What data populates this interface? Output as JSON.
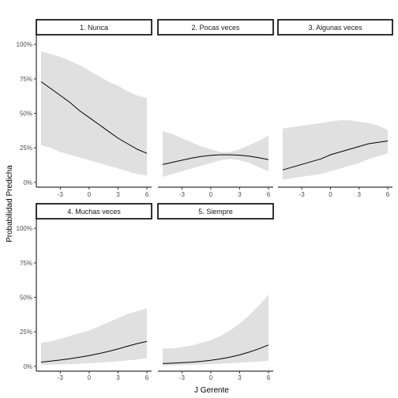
{
  "chart_data": {
    "type": "line",
    "xlabel": "J Gerente",
    "ylabel": "Probabilidad Predicha",
    "xlim": [
      -5,
      6
    ],
    "ylim": [
      0,
      1
    ],
    "x_ticks": [
      -3,
      0,
      3,
      6
    ],
    "y_ticks": [
      0,
      0.25,
      0.5,
      0.75,
      1.0
    ],
    "y_tick_labels": [
      "0%",
      "25%",
      "50%",
      "75%",
      "100%"
    ],
    "band_color": "#e0e0e0",
    "line_color": "#000000",
    "panels": [
      {
        "title": "1. Nunca",
        "x": [
          -5,
          -4,
          -3,
          -2,
          -1,
          0,
          1,
          2,
          3,
          4,
          5,
          6
        ],
        "y": [
          0.73,
          0.68,
          0.63,
          0.58,
          0.52,
          0.47,
          0.42,
          0.37,
          0.32,
          0.28,
          0.24,
          0.21
        ],
        "lower": [
          0.27,
          0.25,
          0.22,
          0.2,
          0.18,
          0.16,
          0.14,
          0.12,
          0.1,
          0.08,
          0.06,
          0.05
        ],
        "upper": [
          0.95,
          0.93,
          0.91,
          0.88,
          0.85,
          0.81,
          0.77,
          0.73,
          0.7,
          0.66,
          0.63,
          0.61
        ]
      },
      {
        "title": "2. Pocas veces",
        "x": [
          -5,
          -4,
          -3,
          -2,
          -1,
          0,
          1,
          2,
          3,
          4,
          5,
          6
        ],
        "y": [
          0.13,
          0.145,
          0.16,
          0.175,
          0.188,
          0.196,
          0.2,
          0.2,
          0.197,
          0.19,
          0.178,
          0.165
        ],
        "lower": [
          0.04,
          0.06,
          0.08,
          0.1,
          0.12,
          0.14,
          0.16,
          0.17,
          0.16,
          0.14,
          0.11,
          0.08
        ],
        "upper": [
          0.37,
          0.35,
          0.32,
          0.29,
          0.26,
          0.24,
          0.22,
          0.22,
          0.24,
          0.27,
          0.3,
          0.34
        ]
      },
      {
        "title": "3. Algunas veces",
        "x": [
          -5,
          -4,
          -3,
          -2,
          -1,
          0,
          1,
          2,
          3,
          4,
          5,
          6
        ],
        "y": [
          0.09,
          0.11,
          0.13,
          0.15,
          0.17,
          0.2,
          0.22,
          0.24,
          0.26,
          0.28,
          0.29,
          0.3
        ],
        "lower": [
          0.02,
          0.03,
          0.04,
          0.05,
          0.06,
          0.08,
          0.1,
          0.12,
          0.14,
          0.17,
          0.19,
          0.21
        ],
        "upper": [
          0.39,
          0.4,
          0.41,
          0.42,
          0.43,
          0.44,
          0.45,
          0.45,
          0.44,
          0.43,
          0.41,
          0.38
        ]
      },
      {
        "title": "4. Muchas veces",
        "x": [
          -5,
          -4,
          -3,
          -2,
          -1,
          0,
          1,
          2,
          3,
          4,
          5,
          6
        ],
        "y": [
          0.03,
          0.038,
          0.046,
          0.055,
          0.066,
          0.078,
          0.092,
          0.108,
          0.126,
          0.146,
          0.165,
          0.18
        ],
        "lower": [
          0.01,
          0.012,
          0.014,
          0.016,
          0.019,
          0.022,
          0.026,
          0.031,
          0.036,
          0.043,
          0.05,
          0.06
        ],
        "upper": [
          0.17,
          0.18,
          0.2,
          0.22,
          0.24,
          0.26,
          0.29,
          0.32,
          0.35,
          0.38,
          0.4,
          0.42
        ]
      },
      {
        "title": "5. Siempre",
        "x": [
          -5,
          -4,
          -3,
          -2,
          -1,
          0,
          1,
          2,
          3,
          4,
          5,
          6
        ],
        "y": [
          0.02,
          0.023,
          0.026,
          0.03,
          0.036,
          0.044,
          0.054,
          0.067,
          0.083,
          0.103,
          0.127,
          0.155
        ],
        "lower": [
          0.005,
          0.007,
          0.009,
          0.011,
          0.013,
          0.016,
          0.019,
          0.022,
          0.026,
          0.03,
          0.035,
          0.04
        ],
        "upper": [
          0.13,
          0.13,
          0.14,
          0.15,
          0.17,
          0.19,
          0.22,
          0.26,
          0.31,
          0.37,
          0.44,
          0.52
        ]
      }
    ]
  }
}
